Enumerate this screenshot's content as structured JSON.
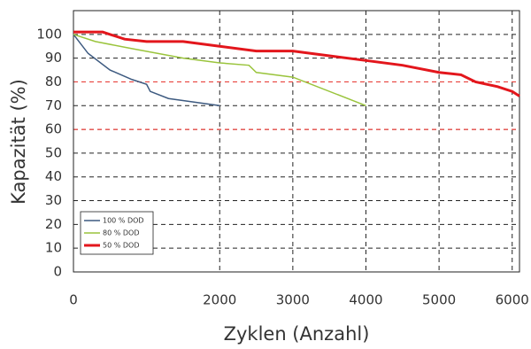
{
  "chart_data": {
    "type": "line",
    "xlabel": "Zyklen (Anzahl)",
    "ylabel": "Kapazität (%)",
    "xlim": [
      0,
      6100
    ],
    "xticks": [
      0,
      2000,
      3000,
      4000,
      5000,
      6000
    ],
    "ylim": [
      0,
      110
    ],
    "yticks": [
      0,
      10,
      20,
      30,
      40,
      50,
      60,
      70,
      80,
      90,
      100
    ],
    "grid": true,
    "legend": "lower left",
    "reference_lines": {
      "values": [
        80,
        60
      ],
      "color": "#e8413c"
    },
    "series": [
      {
        "name": "100 % DOD",
        "color": "#3d5a80",
        "x": [
          0,
          200,
          500,
          800,
          1000,
          1050,
          1300,
          2000
        ],
        "values": [
          100,
          92,
          85,
          81,
          79,
          76,
          73,
          70
        ]
      },
      {
        "name": "80 % DOD",
        "color": "#9ac43c",
        "x": [
          0,
          300,
          800,
          1500,
          2000,
          2400,
          2500,
          3000,
          4000
        ],
        "values": [
          100,
          97,
          94,
          90,
          88,
          87,
          84,
          82,
          70
        ]
      },
      {
        "name": "50 % DOD",
        "color": "#e3161c",
        "x": [
          0,
          400,
          700,
          1000,
          1500,
          2000,
          2500,
          3000,
          3500,
          4000,
          4500,
          5000,
          5300,
          5500,
          5800,
          6000,
          6100
        ],
        "values": [
          101,
          101,
          98,
          97,
          97,
          95,
          93,
          93,
          91,
          89,
          87,
          84,
          83,
          80,
          78,
          76,
          74
        ]
      }
    ]
  }
}
